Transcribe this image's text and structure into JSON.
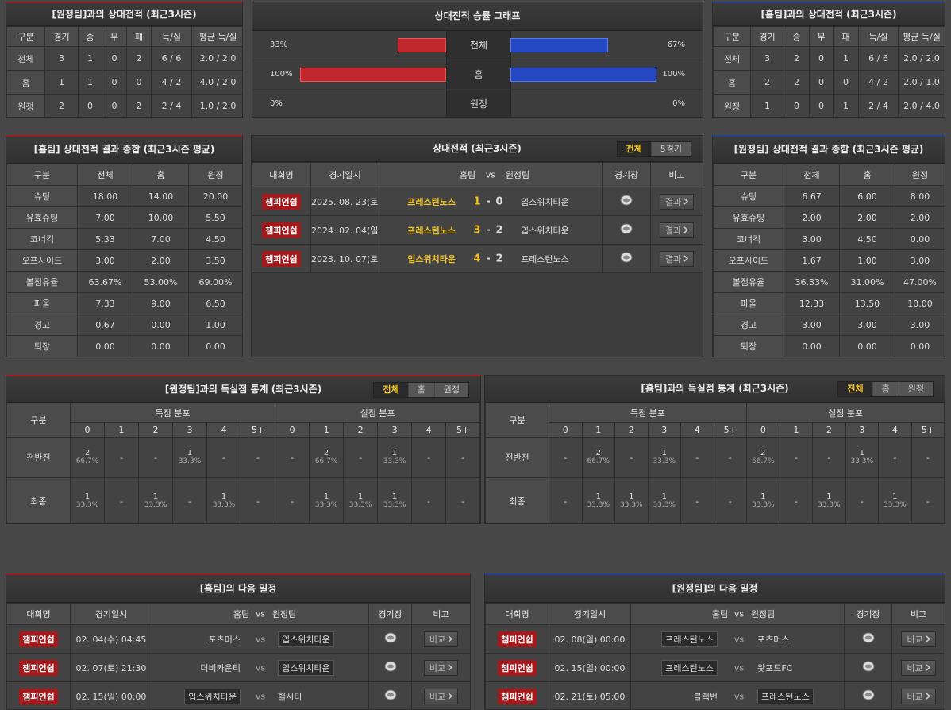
{
  "h2h_away": {
    "title": "[원정팀]과의 상대전적 (최근3시즌)",
    "columns": [
      "구분",
      "경기",
      "승",
      "무",
      "패",
      "득/실",
      "평균 득/실"
    ],
    "rows": [
      [
        "전체",
        "3",
        "1",
        "0",
        "2",
        "6 / 6",
        "2.0 / 2.0"
      ],
      [
        "홈",
        "1",
        "1",
        "0",
        "0",
        "4 / 2",
        "4.0 / 2.0"
      ],
      [
        "원정",
        "2",
        "0",
        "0",
        "2",
        "2 / 4",
        "1.0 / 2.0"
      ]
    ]
  },
  "win_rate": {
    "title": "상대전적 승률 그래프",
    "xlim": [
      0,
      100
    ],
    "rows": [
      {
        "label": "전체",
        "home": {
          "value": 33,
          "label": "33%"
        },
        "away": {
          "value": 67,
          "label": "67%"
        }
      },
      {
        "label": "홈",
        "home": {
          "value": 100,
          "label": "100%"
        },
        "away": {
          "value": 100,
          "label": "100%"
        }
      },
      {
        "label": "원정",
        "home": {
          "value": 0,
          "label": "0%"
        },
        "away": {
          "value": 0,
          "label": "0%"
        }
      }
    ]
  },
  "h2h_home": {
    "title": "[홈팀]과의 상대전적 (최근3시즌)",
    "columns": [
      "구분",
      "경기",
      "승",
      "무",
      "패",
      "득/실",
      "평균 득/실"
    ],
    "rows": [
      [
        "전체",
        "3",
        "2",
        "0",
        "1",
        "6 / 6",
        "2.0 / 2.0"
      ],
      [
        "홈",
        "2",
        "2",
        "0",
        "0",
        "4 / 2",
        "2.0 / 1.0"
      ],
      [
        "원정",
        "1",
        "0",
        "0",
        "1",
        "2 / 4",
        "2.0 / 4.0"
      ]
    ]
  },
  "summary_home": {
    "title": "[홈팀] 상대전적 결과 종합 (최근3시즌 평균)",
    "columns": [
      "구분",
      "전체",
      "홈",
      "원정"
    ],
    "rows": [
      [
        "슈팅",
        "18.00",
        "14.00",
        "20.00"
      ],
      [
        "유효슈팅",
        "7.00",
        "10.00",
        "5.50"
      ],
      [
        "코너킥",
        "5.33",
        "7.00",
        "4.50"
      ],
      [
        "오프사이드",
        "3.00",
        "2.00",
        "3.50"
      ],
      [
        "볼점유율",
        "63.67%",
        "53.00%",
        "69.00%"
      ],
      [
        "파울",
        "7.33",
        "9.00",
        "6.50"
      ],
      [
        "경고",
        "0.67",
        "0.00",
        "1.00"
      ],
      [
        "퇴장",
        "0.00",
        "0.00",
        "0.00"
      ]
    ]
  },
  "matches": {
    "title": "상대전적 (최근3시즌)",
    "tabs": [
      "전체",
      "5경기"
    ],
    "columns": [
      "대회명",
      "경기일시",
      "홈팀",
      "vs",
      "원정팀",
      "경기장",
      "비고"
    ],
    "rows": [
      {
        "league": "챔피언쉽",
        "date": "2025. 08. 23(토)",
        "home": "프레스턴노스",
        "home_score": "1",
        "sep": "-",
        "away_score": "0",
        "away": "입스위치타운",
        "button": "결과"
      },
      {
        "league": "챔피언쉽",
        "date": "2024. 02. 04(일)",
        "home": "프레스턴노스",
        "home_score": "3",
        "sep": "-",
        "away_score": "2",
        "away": "입스위치타운",
        "button": "결과"
      },
      {
        "league": "챔피언쉽",
        "date": "2023. 10. 07(토)",
        "home": "입스위치타운",
        "home_score": "4",
        "sep": "-",
        "away_score": "2",
        "away": "프레스턴노스",
        "button": "결과"
      }
    ]
  },
  "summary_away": {
    "title": "[원정팀] 상대전적 결과 종합 (최근3시즌 평균)",
    "columns": [
      "구분",
      "전체",
      "홈",
      "원정"
    ],
    "rows": [
      [
        "슈팅",
        "6.67",
        "6.00",
        "8.00"
      ],
      [
        "유효슈팅",
        "2.00",
        "2.00",
        "2.00"
      ],
      [
        "코너킥",
        "3.00",
        "4.50",
        "0.00"
      ],
      [
        "오프사이드",
        "1.67",
        "1.00",
        "3.00"
      ],
      [
        "볼점유율",
        "36.33%",
        "31.00%",
        "47.00%"
      ],
      [
        "파울",
        "12.33",
        "13.50",
        "10.00"
      ],
      [
        "경고",
        "3.00",
        "3.00",
        "3.00"
      ],
      [
        "퇴장",
        "0.00",
        "0.00",
        "0.00"
      ]
    ]
  },
  "goals_away": {
    "title": "[원정팀]과의 득실점 통계 (최근3시즌)",
    "tabs": [
      "전체",
      "홈",
      "원정"
    ],
    "row_header": "구분",
    "groups": [
      "득점 분포",
      "실점 분포"
    ],
    "buckets": [
      [
        "0",
        "1",
        "2",
        "3",
        "4",
        "5+"
      ],
      [
        "0",
        "1",
        "2",
        "3",
        "4",
        "5+"
      ]
    ],
    "rows": [
      {
        "label": "전반전",
        "cells": [
          [
            "2",
            "66.7%"
          ],
          [
            "-"
          ],
          [
            "-"
          ],
          [
            "1",
            "33.3%"
          ],
          [
            "-"
          ],
          [
            "-"
          ],
          [
            "-"
          ],
          [
            "2",
            "66.7%"
          ],
          [
            "-"
          ],
          [
            "1",
            "33.3%"
          ],
          [
            "-"
          ],
          [
            "-"
          ]
        ]
      },
      {
        "label": "최종",
        "cells": [
          [
            "1",
            "33.3%"
          ],
          [
            "-"
          ],
          [
            "1",
            "33.3%"
          ],
          [
            "-"
          ],
          [
            "1",
            "33.3%"
          ],
          [
            "-"
          ],
          [
            "-"
          ],
          [
            "1",
            "33.3%"
          ],
          [
            "1",
            "33.3%"
          ],
          [
            "1",
            "33.3%"
          ],
          [
            "-"
          ],
          [
            "-"
          ]
        ]
      }
    ]
  },
  "goals_home": {
    "title": "[홈팀]과의 득실점 통계 (최근3시즌)",
    "tabs": [
      "전체",
      "홈",
      "원정"
    ],
    "row_header": "구분",
    "groups": [
      "득점 분포",
      "실점 분포"
    ],
    "buckets": [
      [
        "0",
        "1",
        "2",
        "3",
        "4",
        "5+"
      ],
      [
        "0",
        "1",
        "2",
        "3",
        "4",
        "5+"
      ]
    ],
    "rows": [
      {
        "label": "전반전",
        "cells": [
          [
            "-"
          ],
          [
            "2",
            "66.7%"
          ],
          [
            "-"
          ],
          [
            "1",
            "33.3%"
          ],
          [
            "-"
          ],
          [
            "-"
          ],
          [
            "2",
            "66.7%"
          ],
          [
            "-"
          ],
          [
            "-"
          ],
          [
            "1",
            "33.3%"
          ],
          [
            "-"
          ],
          [
            "-"
          ]
        ]
      },
      {
        "label": "최종",
        "cells": [
          [
            "-"
          ],
          [
            "1",
            "33.3%"
          ],
          [
            "1",
            "33.3%"
          ],
          [
            "1",
            "33.3%"
          ],
          [
            "-"
          ],
          [
            "-"
          ],
          [
            "1",
            "33.3%"
          ],
          [
            "-"
          ],
          [
            "1",
            "33.3%"
          ],
          [
            "-"
          ],
          [
            "1",
            "33.3%"
          ],
          [
            "-"
          ]
        ]
      }
    ]
  },
  "schedule_home": {
    "title": "[홈팀]의 다음 일정",
    "columns": [
      "대회명",
      "경기일시",
      "홈팀",
      "vs",
      "원정팀",
      "경기장",
      "비고"
    ],
    "rows": [
      {
        "league": "챔피언쉽",
        "date": "02. 04(수) 04:45",
        "home": "포츠머스",
        "vs": "vs",
        "away": "입스위치타운",
        "boxed": "away",
        "button": "비교"
      },
      {
        "league": "챔피언쉽",
        "date": "02. 07(토) 21:30",
        "home": "더비카운티",
        "vs": "vs",
        "away": "입스위치타운",
        "boxed": "away",
        "button": "비교"
      },
      {
        "league": "챔피언쉽",
        "date": "02. 15(일) 00:00",
        "home": "입스위치타운",
        "vs": "vs",
        "away": "헐시티",
        "boxed": "home",
        "button": "비교"
      }
    ]
  },
  "schedule_away": {
    "title": "[원정팀]의 다음 일정",
    "columns": [
      "대회명",
      "경기일시",
      "홈팀",
      "vs",
      "원정팀",
      "경기장",
      "비고"
    ],
    "rows": [
      {
        "league": "챔피언쉽",
        "date": "02. 08(일) 00:00",
        "home": "프레스턴노스",
        "vs": "vs",
        "away": "포츠머스",
        "boxed": "home",
        "button": "비교"
      },
      {
        "league": "챔피언쉽",
        "date": "02. 15(일) 00:00",
        "home": "프레스턴노스",
        "vs": "vs",
        "away": "왓포드FC",
        "boxed": "home",
        "button": "비교"
      },
      {
        "league": "챔피언쉽",
        "date": "02. 21(토) 05:00",
        "home": "블랙번",
        "vs": "vs",
        "away": "프레스턴노스",
        "boxed": "away",
        "button": "비교"
      }
    ]
  }
}
